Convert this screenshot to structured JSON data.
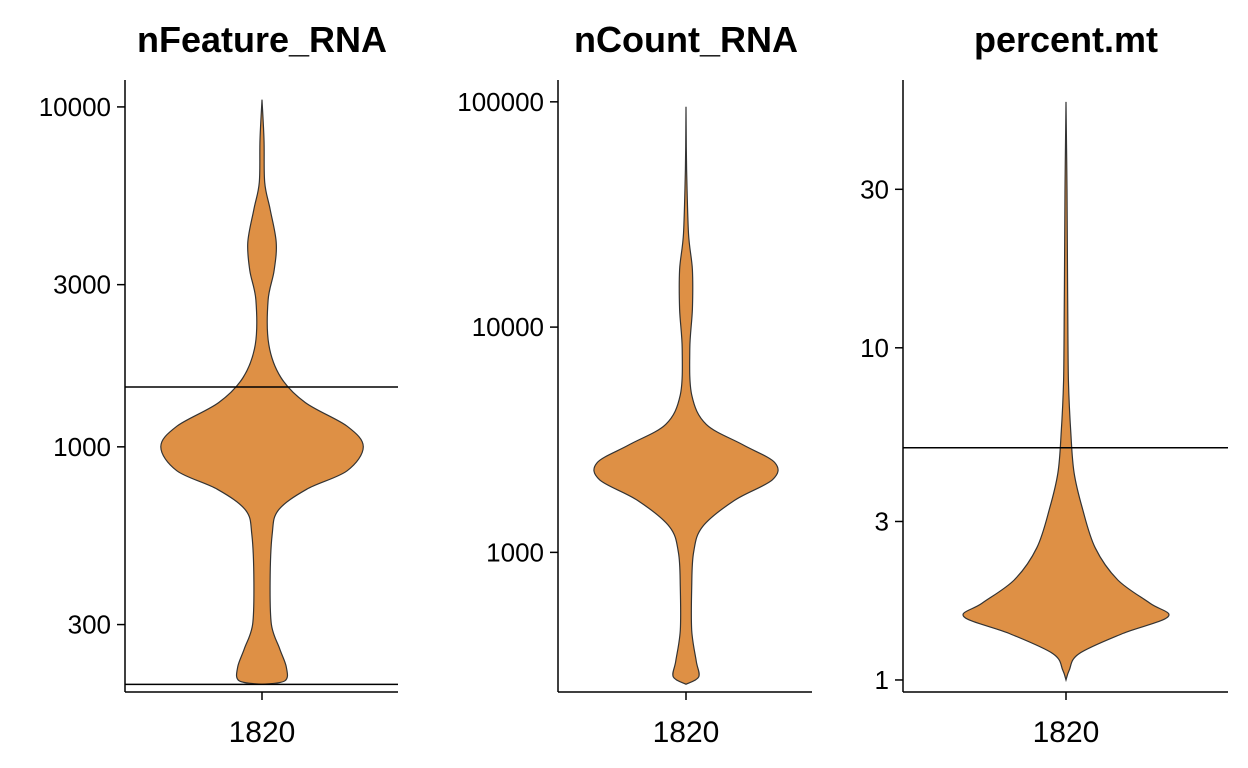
{
  "colors": {
    "violin_fill": "#DE9045"
  },
  "chart_data": [
    {
      "type": "violin",
      "title": "nFeature_RNA",
      "scale": "log10",
      "categories": [
        "1820"
      ],
      "yticks": [
        300,
        1000,
        3000,
        10000
      ],
      "ytick_labels": [
        "300",
        "1000",
        "3000",
        "10000"
      ],
      "ylim": [
        190,
        12000
      ],
      "thresholds": [
        200,
        1500
      ],
      "density": [
        {
          "y": 200,
          "w": 0.0
        },
        {
          "y": 205,
          "w": 0.17
        },
        {
          "y": 225,
          "w": 0.18
        },
        {
          "y": 255,
          "w": 0.13
        },
        {
          "y": 300,
          "w": 0.07
        },
        {
          "y": 400,
          "w": 0.06
        },
        {
          "y": 550,
          "w": 0.075
        },
        {
          "y": 650,
          "w": 0.12
        },
        {
          "y": 750,
          "w": 0.33
        },
        {
          "y": 850,
          "w": 0.63
        },
        {
          "y": 1000,
          "w": 0.75
        },
        {
          "y": 1150,
          "w": 0.63
        },
        {
          "y": 1350,
          "w": 0.32
        },
        {
          "y": 1600,
          "w": 0.14
        },
        {
          "y": 2000,
          "w": 0.05
        },
        {
          "y": 2700,
          "w": 0.045
        },
        {
          "y": 3300,
          "w": 0.09
        },
        {
          "y": 4000,
          "w": 0.105
        },
        {
          "y": 5000,
          "w": 0.06
        },
        {
          "y": 6000,
          "w": 0.02
        },
        {
          "y": 8000,
          "w": 0.015
        },
        {
          "y": 10500,
          "w": 0.0
        }
      ]
    },
    {
      "type": "violin",
      "title": "nCount_RNA",
      "scale": "log10",
      "categories": [
        "1820"
      ],
      "yticks": [
        1000,
        10000,
        100000
      ],
      "ytick_labels": [
        "1000",
        "10000",
        "100000"
      ],
      "ylim": [
        240,
        125000
      ],
      "thresholds": [],
      "density": [
        {
          "y": 260,
          "w": 0.0
        },
        {
          "y": 280,
          "w": 0.1
        },
        {
          "y": 330,
          "w": 0.08
        },
        {
          "y": 450,
          "w": 0.045
        },
        {
          "y": 700,
          "w": 0.045
        },
        {
          "y": 1000,
          "w": 0.06
        },
        {
          "y": 1300,
          "w": 0.13
        },
        {
          "y": 1700,
          "w": 0.38
        },
        {
          "y": 2100,
          "w": 0.68
        },
        {
          "y": 2500,
          "w": 0.7
        },
        {
          "y": 3000,
          "w": 0.45
        },
        {
          "y": 3700,
          "w": 0.16
        },
        {
          "y": 5000,
          "w": 0.045
        },
        {
          "y": 8000,
          "w": 0.03
        },
        {
          "y": 12000,
          "w": 0.05
        },
        {
          "y": 18000,
          "w": 0.05
        },
        {
          "y": 26000,
          "w": 0.02
        },
        {
          "y": 50000,
          "w": 0.005
        },
        {
          "y": 95000,
          "w": 0.0
        }
      ]
    },
    {
      "type": "violin",
      "title": "percent.mt",
      "scale": "log10",
      "categories": [
        "1820"
      ],
      "yticks": [
        1,
        3,
        10,
        30
      ],
      "ytick_labels": [
        "1",
        "3",
        "10",
        "30"
      ],
      "ylim": [
        0.92,
        64
      ],
      "thresholds": [
        5
      ],
      "density": [
        {
          "y": 1.0,
          "w": 0.0
        },
        {
          "y": 1.07,
          "w": 0.02
        },
        {
          "y": 1.2,
          "w": 0.08
        },
        {
          "y": 1.38,
          "w": 0.35
        },
        {
          "y": 1.55,
          "w": 0.63
        },
        {
          "y": 1.7,
          "w": 0.52
        },
        {
          "y": 2.0,
          "w": 0.32
        },
        {
          "y": 2.5,
          "w": 0.18
        },
        {
          "y": 3.3,
          "w": 0.1
        },
        {
          "y": 4.2,
          "w": 0.05
        },
        {
          "y": 5.5,
          "w": 0.03
        },
        {
          "y": 8.0,
          "w": 0.015
        },
        {
          "y": 15,
          "w": 0.01
        },
        {
          "y": 30,
          "w": 0.006
        },
        {
          "y": 55,
          "w": 0.0
        }
      ]
    }
  ]
}
